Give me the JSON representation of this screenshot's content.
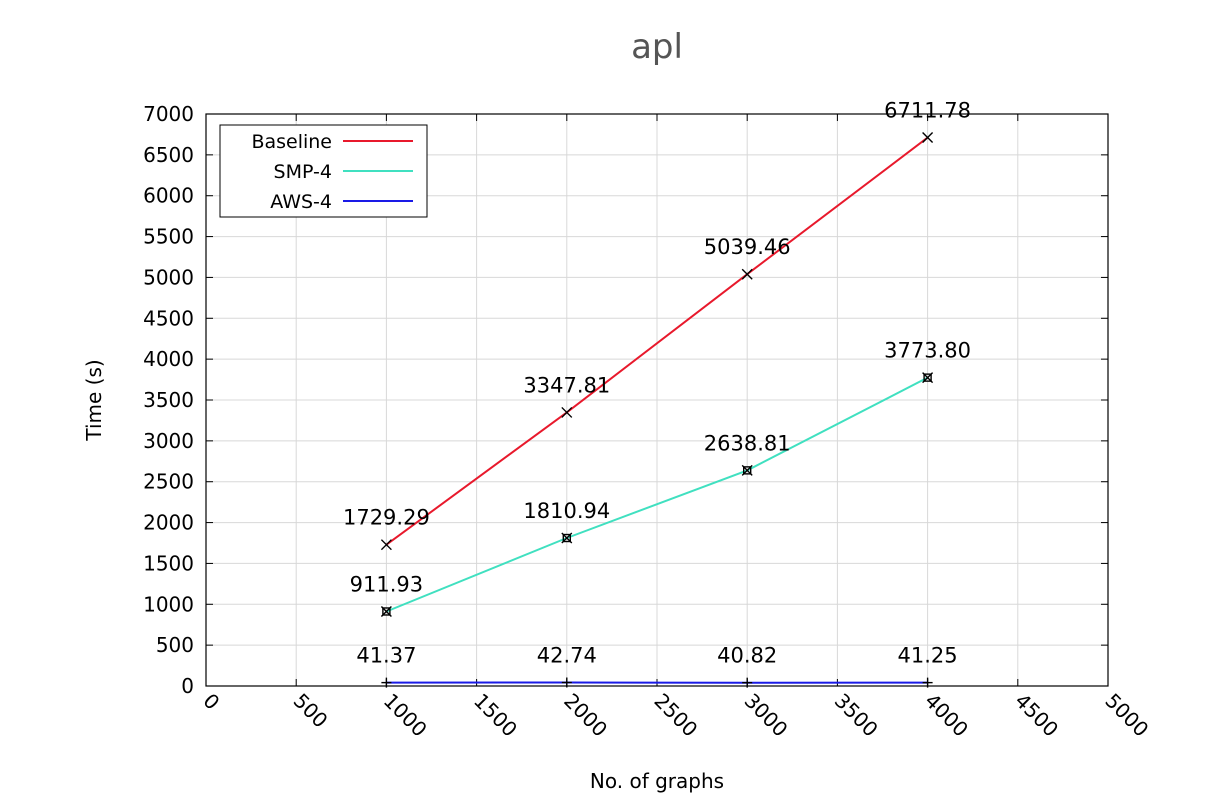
{
  "chart_data": {
    "type": "line",
    "title": "apl",
    "xlabel": "No. of graphs",
    "ylabel": "Time (s)",
    "xlim": [
      0,
      5000
    ],
    "ylim": [
      0,
      7000
    ],
    "xticks": [
      "0",
      "500",
      "1000",
      "1500",
      "2000",
      "2500",
      "3000",
      "3500",
      "4000",
      "4500",
      "5000"
    ],
    "yticks": [
      "0",
      "500",
      "1000",
      "1500",
      "2000",
      "2500",
      "3000",
      "3500",
      "4000",
      "4500",
      "5000",
      "5500",
      "6000",
      "6500",
      "7000"
    ],
    "grid": true,
    "legend_position": "top-left",
    "x": [
      1000,
      2000,
      3000,
      4000
    ],
    "series": [
      {
        "name": "Baseline",
        "color": "#e8192c",
        "marker": "x",
        "values": [
          1729.29,
          3347.81,
          5039.46,
          6711.78
        ],
        "labels": [
          "1729.29",
          "3347.81",
          "5039.46",
          "6711.78"
        ]
      },
      {
        "name": "SMP-4",
        "color": "#40e0c0",
        "marker": "boxed-x",
        "values": [
          911.93,
          1810.94,
          2638.81,
          3773.8
        ],
        "labels": [
          "911.93",
          "1810.94",
          "2638.81",
          "3773.80"
        ]
      },
      {
        "name": "AWS-4",
        "color": "#1a1ae6",
        "marker": "plus",
        "values": [
          41.37,
          42.74,
          40.82,
          41.25
        ],
        "labels": [
          "41.37",
          "42.74",
          "40.82",
          "41.25"
        ]
      }
    ]
  }
}
